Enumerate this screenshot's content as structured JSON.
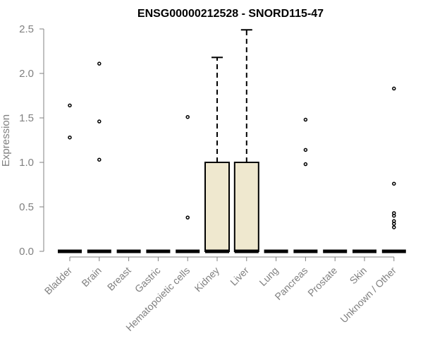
{
  "chart_data": {
    "type": "box",
    "title": "ENSG00000212528 - SNORD115-47",
    "xlabel": "",
    "ylabel": "Expression",
    "ylim": [
      0,
      2.5
    ],
    "yticks": [
      "0.0",
      "0.5",
      "1.0",
      "1.5",
      "2.0",
      "2.5"
    ],
    "categories": [
      "Bladder",
      "Brain",
      "Breast",
      "Gastric",
      "Hematopoietic cells",
      "Kidney",
      "Liver",
      "Lung",
      "Pancreas",
      "Prostate",
      "Skin",
      "Unknown / Other"
    ],
    "boxes": [
      {
        "category": "Bladder",
        "q1": 0,
        "median": 0,
        "q3": 0,
        "whisker_low": 0,
        "whisker_high": 0,
        "outliers": [
          1.28,
          1.64
        ]
      },
      {
        "category": "Brain",
        "q1": 0,
        "median": 0,
        "q3": 0,
        "whisker_low": 0,
        "whisker_high": 0,
        "outliers": [
          1.03,
          1.46,
          2.11
        ]
      },
      {
        "category": "Breast",
        "q1": 0,
        "median": 0,
        "q3": 0,
        "whisker_low": 0,
        "whisker_high": 0,
        "outliers": []
      },
      {
        "category": "Gastric",
        "q1": 0,
        "median": 0,
        "q3": 0,
        "whisker_low": 0,
        "whisker_high": 0,
        "outliers": []
      },
      {
        "category": "Hematopoietic cells",
        "q1": 0,
        "median": 0,
        "q3": 0,
        "whisker_low": 0,
        "whisker_high": 0,
        "outliers": [
          0.38,
          1.51
        ]
      },
      {
        "category": "Kidney",
        "q1": 0,
        "median": 0,
        "q3": 1.0,
        "whisker_low": 0,
        "whisker_high": 2.18,
        "outliers": []
      },
      {
        "category": "Liver",
        "q1": 0,
        "median": 0,
        "q3": 1.0,
        "whisker_low": 0,
        "whisker_high": 2.49,
        "outliers": []
      },
      {
        "category": "Lung",
        "q1": 0,
        "median": 0,
        "q3": 0,
        "whisker_low": 0,
        "whisker_high": 0,
        "outliers": []
      },
      {
        "category": "Pancreas",
        "q1": 0,
        "median": 0,
        "q3": 0,
        "whisker_low": 0,
        "whisker_high": 0,
        "outliers": [
          0.98,
          1.14,
          1.48
        ]
      },
      {
        "category": "Prostate",
        "q1": 0,
        "median": 0,
        "q3": 0,
        "whisker_low": 0,
        "whisker_high": 0,
        "outliers": []
      },
      {
        "category": "Skin",
        "q1": 0,
        "median": 0,
        "q3": 0,
        "whisker_low": 0,
        "whisker_high": 0,
        "outliers": []
      },
      {
        "category": "Unknown / Other",
        "q1": 0,
        "median": 0,
        "q3": 0,
        "whisker_low": 0,
        "whisker_high": 0,
        "outliers": [
          0.27,
          0.31,
          0.34,
          0.4,
          0.43,
          0.76,
          1.83
        ]
      }
    ],
    "colors": {
      "box_fill": "#efe8cf",
      "box_stroke": "#000000",
      "axis": "#808080",
      "title": "#000000"
    },
    "grid": false,
    "legend": "none"
  }
}
